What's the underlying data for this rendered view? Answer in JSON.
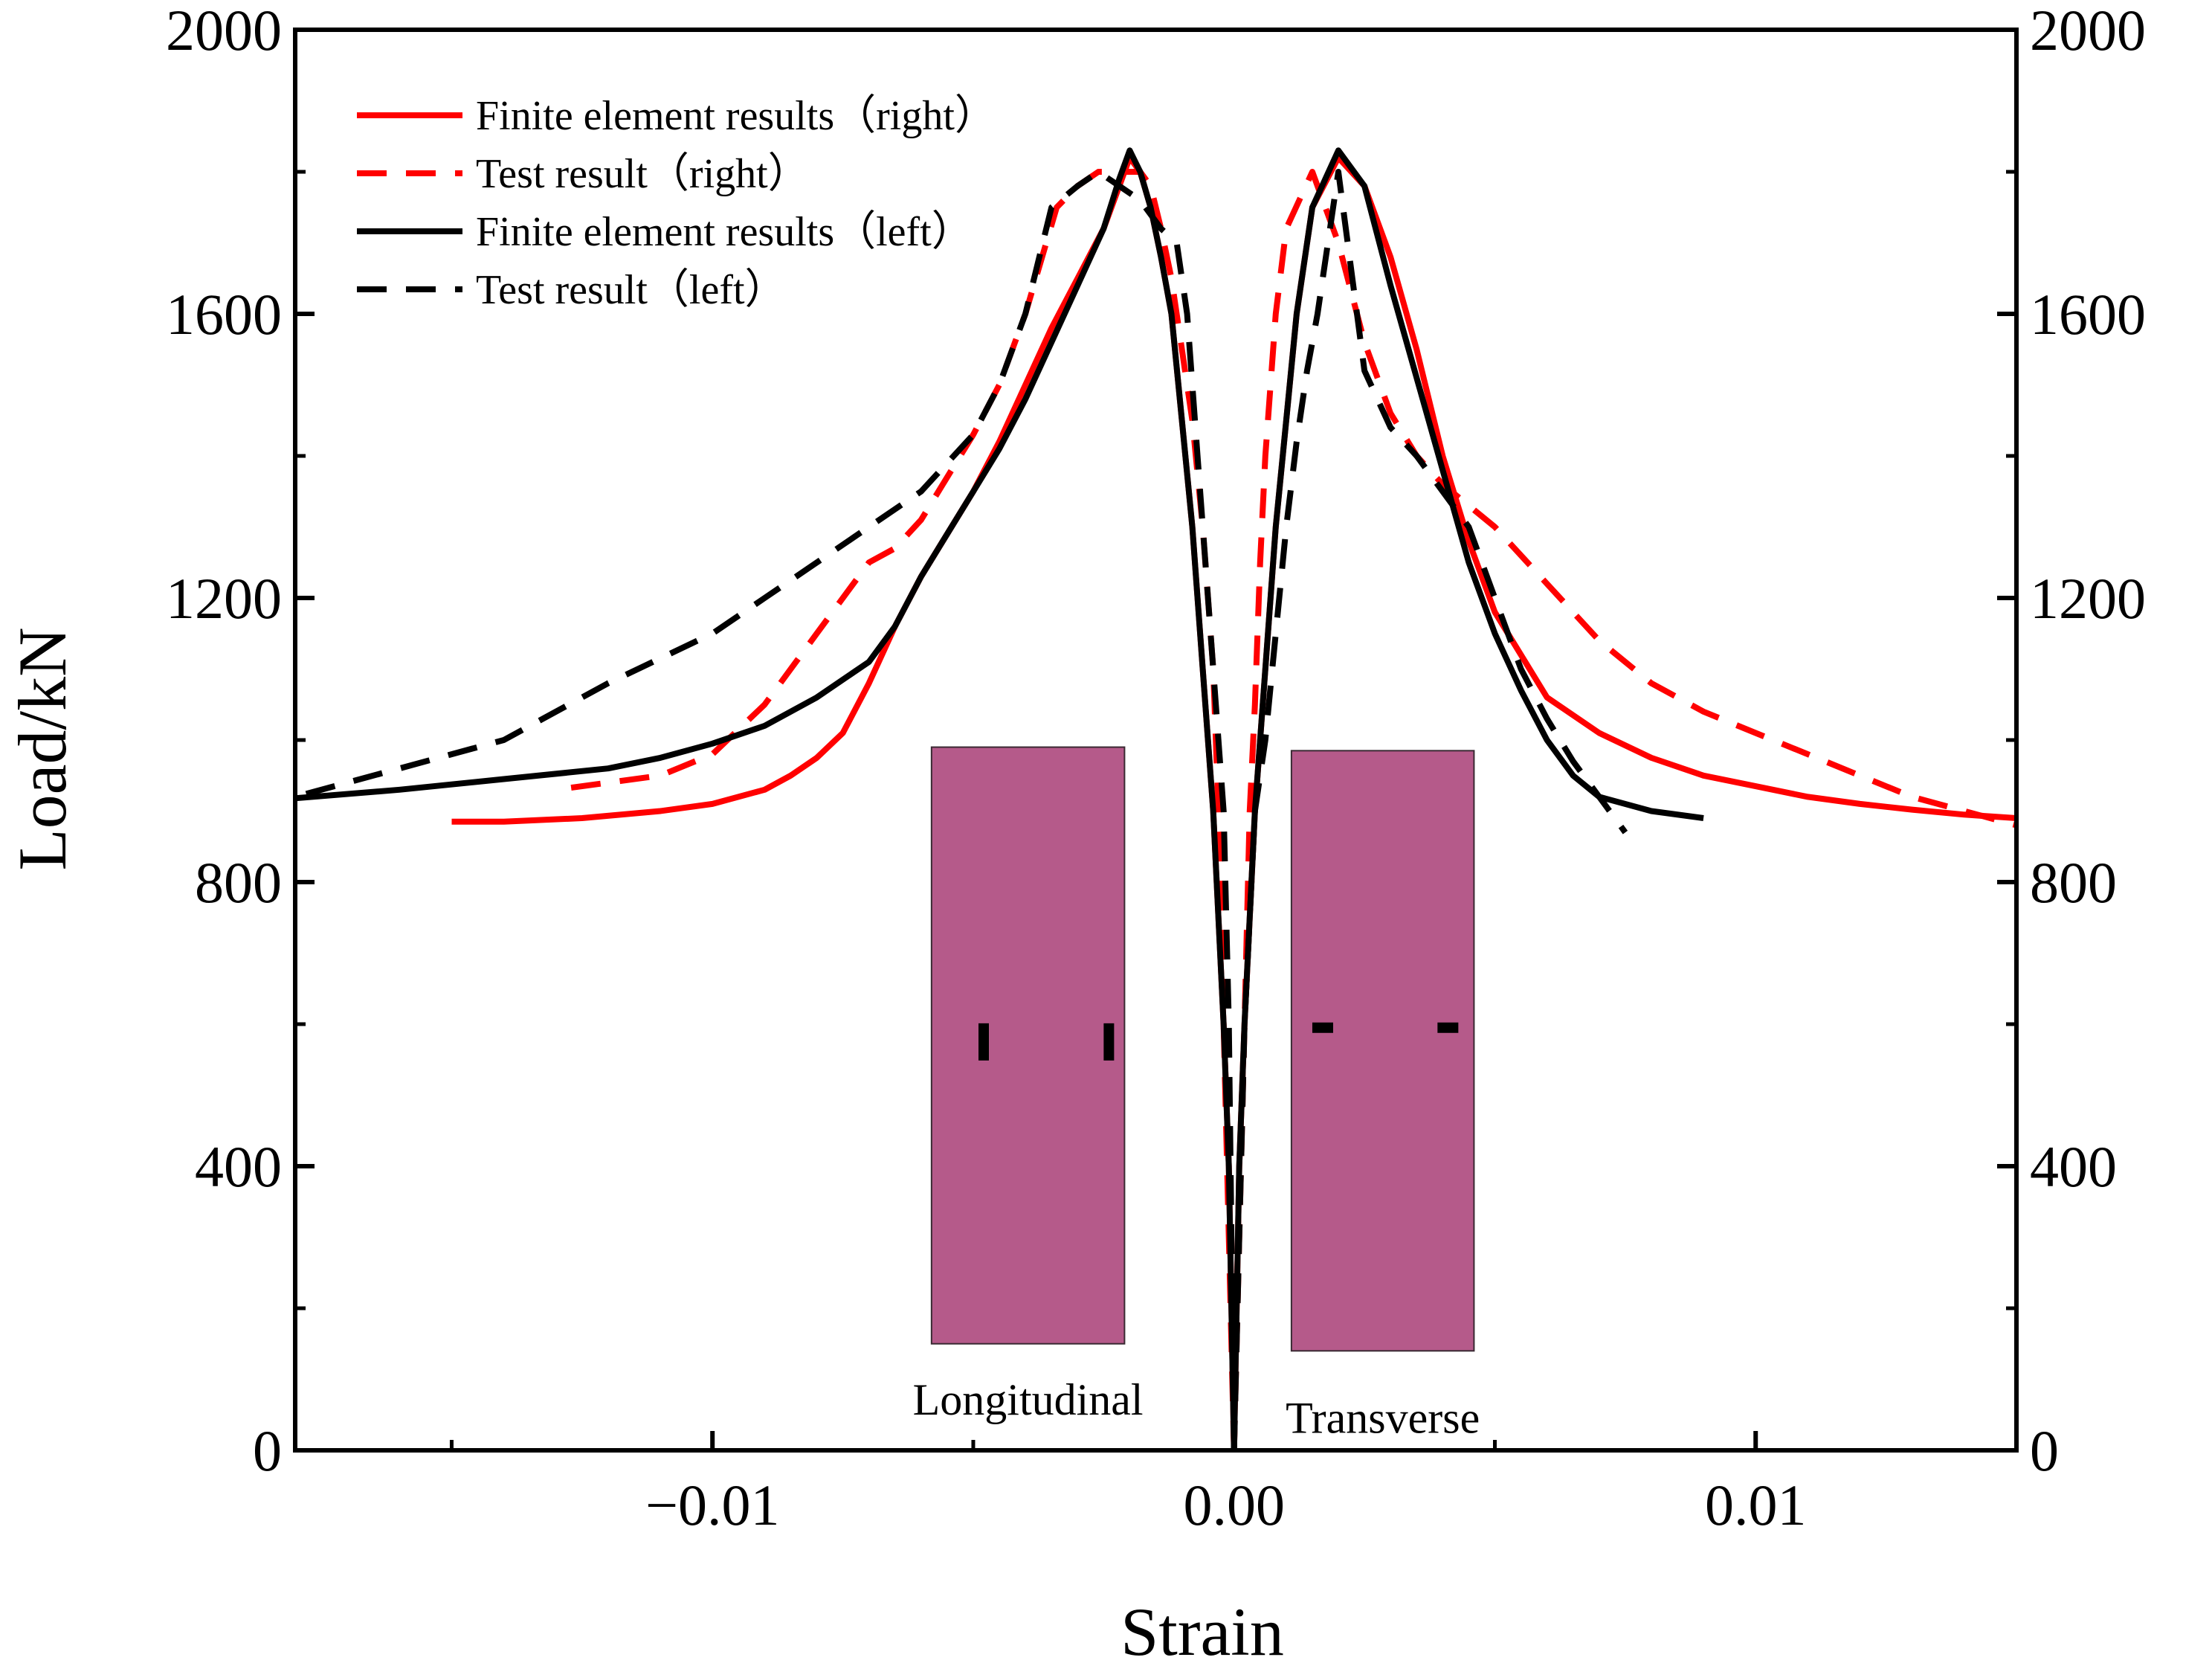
{
  "chart_data": {
    "type": "line",
    "title": "",
    "xlabel": "Strain",
    "ylabel": "Load/kN",
    "xlim": [
      -0.018,
      0.015
    ],
    "ylim": [
      0,
      2000
    ],
    "x_ticks": [
      {
        "value": -0.01,
        "label": "−0.01"
      },
      {
        "value": 0.0,
        "label": "0.00"
      },
      {
        "value": 0.01,
        "label": "0.01"
      }
    ],
    "y_ticks_left": [
      {
        "value": 0,
        "label": "0"
      },
      {
        "value": 400,
        "label": "400"
      },
      {
        "value": 800,
        "label": "800"
      },
      {
        "value": 1200,
        "label": "1200"
      },
      {
        "value": 1600,
        "label": "1600"
      },
      {
        "value": 2000,
        "label": "2000"
      }
    ],
    "y_ticks_right": [
      {
        "value": 0,
        "label": "0"
      },
      {
        "value": 400,
        "label": "400"
      },
      {
        "value": 800,
        "label": "800"
      },
      {
        "value": 1200,
        "label": "1200"
      },
      {
        "value": 1600,
        "label": "1600"
      },
      {
        "value": 2000,
        "label": "2000"
      }
    ],
    "grid": false,
    "legend_position": "top-left",
    "series": [
      {
        "name": "Finite element results（right）",
        "color": "#ff0000",
        "style": "solid",
        "branches": [
          {
            "x": [
              0,
              -5e-05,
              -0.0001,
              -0.0002,
              -0.0004,
              -0.0006,
              -0.0008,
              -0.001,
              -0.0012,
              -0.0014,
              -0.0016,
              -0.0018,
              -0.002,
              -0.0022,
              -0.0025,
              -0.003,
              -0.0035,
              -0.004,
              -0.0045,
              -0.005,
              -0.0055,
              -0.006,
              -0.0065,
              -0.007,
              -0.0075,
              -0.008,
              -0.0085,
              -0.009,
              -0.01,
              -0.011,
              -0.0125,
              -0.014,
              -0.015
            ],
            "y": [
              0,
              200,
              400,
              600,
              900,
              1100,
              1300,
              1450,
              1600,
              1680,
              1750,
              1800,
              1820,
              1780,
              1720,
              1650,
              1580,
              1500,
              1420,
              1350,
              1290,
              1230,
              1160,
              1080,
              1010,
              975,
              950,
              930,
              910,
              900,
              890,
              885,
              885
            ]
          },
          {
            "x": [
              0,
              5e-05,
              0.0001,
              0.0002,
              0.0004,
              0.0006,
              0.0008,
              0.001,
              0.0012,
              0.0015,
              0.002,
              0.0025,
              0.003,
              0.0035,
              0.004,
              0.0045,
              0.005,
              0.006,
              0.007,
              0.008,
              0.009,
              0.01,
              0.011,
              0.012,
              0.013,
              0.014,
              0.015
            ],
            "y": [
              0,
              200,
              400,
              600,
              900,
              1100,
              1300,
              1450,
              1600,
              1750,
              1820,
              1780,
              1680,
              1550,
              1400,
              1280,
              1180,
              1060,
              1010,
              975,
              950,
              935,
              920,
              910,
              902,
              895,
              890
            ]
          }
        ]
      },
      {
        "name": "Test result（right）",
        "color": "#ff0000",
        "style": "dashed",
        "branches": [
          {
            "x": [
              0,
              -0.0001,
              -0.0002,
              -0.0003,
              -0.0004,
              -0.0006,
              -0.0008,
              -0.001,
              -0.0012,
              -0.0014,
              -0.0016,
              -0.0018,
              -0.0022,
              -0.0026,
              -0.003,
              -0.0034,
              -0.004,
              -0.0045,
              -0.005,
              -0.0055,
              -0.006,
              -0.0065,
              -0.007,
              -0.008,
              -0.009,
              -0.01,
              -0.011,
              -0.012,
              -0.013
            ],
            "y": [
              0,
              300,
              600,
              900,
              1100,
              1300,
              1450,
              1550,
              1650,
              1720,
              1780,
              1800,
              1800,
              1800,
              1780,
              1750,
              1600,
              1500,
              1430,
              1370,
              1310,
              1270,
              1250,
              1150,
              1050,
              980,
              950,
              940,
              930
            ]
          },
          {
            "x": [
              0,
              0.0001,
              0.0002,
              0.0003,
              0.0004,
              0.0005,
              0.0006,
              0.0008,
              0.001,
              0.0015,
              0.002,
              0.0025,
              0.003,
              0.0035,
              0.004,
              0.0045,
              0.005,
              0.006,
              0.007,
              0.008,
              0.009,
              0.01,
              0.011,
              0.012,
              0.013,
              0.014,
              0.015
            ],
            "y": [
              0,
              300,
              600,
              900,
              1050,
              1250,
              1400,
              1600,
              1720,
              1800,
              1700,
              1560,
              1460,
              1400,
              1360,
              1330,
              1300,
              1220,
              1140,
              1080,
              1040,
              1010,
              980,
              950,
              920,
              900,
              880
            ]
          }
        ]
      },
      {
        "name": "Finite element results（left）",
        "color": "#000000",
        "style": "solid",
        "branches": [
          {
            "x": [
              0,
              -5e-05,
              -0.0001,
              -0.0002,
              -0.0004,
              -0.0006,
              -0.0008,
              -0.001,
              -0.0012,
              -0.0014,
              -0.0016,
              -0.0018,
              -0.002,
              -0.0022,
              -0.0025,
              -0.003,
              -0.0035,
              -0.004,
              -0.0045,
              -0.005,
              -0.0055,
              -0.006,
              -0.0065,
              -0.007,
              -0.008,
              -0.009,
              -0.01,
              -0.011,
              -0.012,
              -0.014,
              -0.016,
              -0.018
            ],
            "y": [
              0,
              200,
              400,
              600,
              900,
              1100,
              1300,
              1450,
              1600,
              1680,
              1750,
              1800,
              1830,
              1790,
              1720,
              1640,
              1560,
              1480,
              1410,
              1350,
              1290,
              1230,
              1160,
              1110,
              1060,
              1020,
              995,
              975,
              960,
              945,
              930,
              918
            ]
          },
          {
            "x": [
              0,
              5e-05,
              0.0001,
              0.0002,
              0.0004,
              0.0006,
              0.0008,
              0.001,
              0.0012,
              0.0015,
              0.002,
              0.0025,
              0.003,
              0.0035,
              0.004,
              0.0045,
              0.005,
              0.0055,
              0.006,
              0.0065,
              0.007,
              0.008,
              0.009
            ],
            "y": [
              0,
              200,
              400,
              600,
              900,
              1100,
              1300,
              1450,
              1600,
              1750,
              1830,
              1780,
              1640,
              1510,
              1380,
              1250,
              1150,
              1070,
              1000,
              950,
              920,
              900,
              890
            ]
          }
        ]
      },
      {
        "name": "Test result（left）",
        "color": "#000000",
        "style": "dashed",
        "branches": [
          {
            "x": [
              0,
              -5e-05,
              -0.0001,
              -0.0002,
              -0.0003,
              -0.0005,
              -0.0007,
              -0.0009,
              -0.0011,
              -0.0014,
              -0.0016,
              -0.0018,
              -0.0022,
              -0.0026,
              -0.003,
              -0.0035,
              -0.004,
              -0.0045,
              -0.005,
              -0.006,
              -0.007,
              -0.008,
              -0.009,
              -0.01,
              -0.012,
              -0.014,
              -0.016,
              -0.018
            ],
            "y": [
              0,
              300,
              600,
              900,
              1000,
              1200,
              1400,
              1600,
              1700,
              1720,
              1740,
              1760,
              1780,
              1800,
              1780,
              1750,
              1600,
              1500,
              1430,
              1350,
              1300,
              1250,
              1200,
              1150,
              1080,
              1000,
              960,
              920
            ]
          },
          {
            "x": [
              0,
              0.0001,
              0.0002,
              0.0004,
              0.0006,
              0.0008,
              0.001,
              0.0012,
              0.0014,
              0.0016,
              0.0018,
              0.002,
              0.0025,
              0.003,
              0.0035,
              0.004,
              0.0045,
              0.005,
              0.0055,
              0.006,
              0.0065,
              0.007,
              0.0075
            ],
            "y": [
              0,
              300,
              600,
              900,
              1000,
              1150,
              1300,
              1420,
              1520,
              1600,
              1700,
              1800,
              1520,
              1440,
              1400,
              1350,
              1300,
              1200,
              1100,
              1030,
              970,
              920,
              870
            ]
          }
        ]
      }
    ],
    "insets": [
      {
        "label": "Longitudinal",
        "x_range": [
          -0.0058,
          -0.0021
        ],
        "y_range": [
          150,
          990
        ],
        "fill": "#b55a8a",
        "marker_orientation": "vertical",
        "markers_y": 575,
        "markers_x": [
          -0.0048,
          -0.0024
        ]
      },
      {
        "label": "Transverse",
        "x_range": [
          0.0011,
          0.0046
        ],
        "y_range": [
          140,
          985
        ],
        "fill": "#b55a8a",
        "marker_orientation": "horizontal",
        "markers_y": 595,
        "markers_x": [
          0.0017,
          0.0041
        ]
      }
    ]
  }
}
